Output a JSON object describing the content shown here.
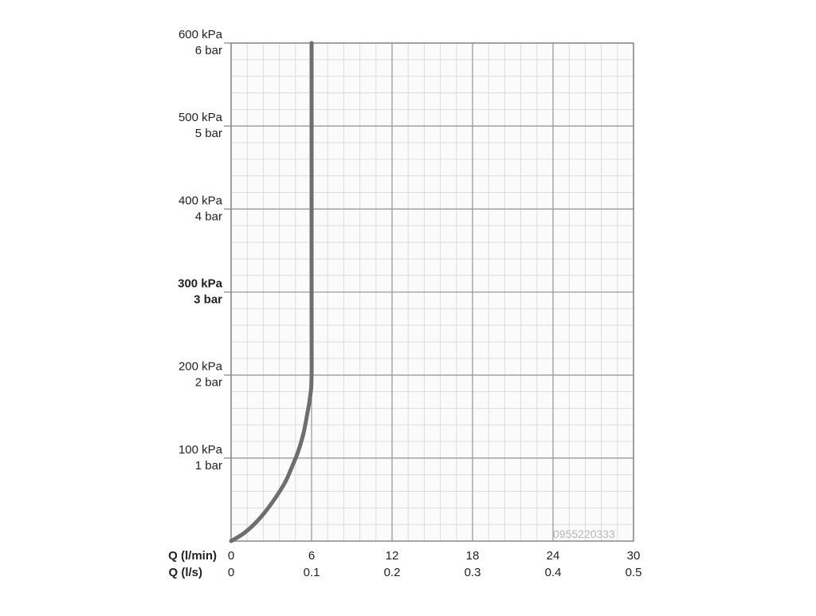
{
  "chart_data": {
    "type": "line",
    "x_axes": [
      {
        "label": "Q (l/min)",
        "ticks": [
          0,
          6,
          12,
          18,
          24,
          30
        ],
        "tick_labels": [
          "0",
          "6",
          "12",
          "18",
          "24",
          "30"
        ],
        "range": [
          0,
          30
        ]
      },
      {
        "label": "Q (l/s)",
        "ticks": [
          0,
          0.1,
          0.2,
          0.3,
          0.4,
          0.5
        ],
        "tick_labels": [
          "0",
          "0.1",
          "0.2",
          "0.3",
          "0.4",
          "0.5"
        ],
        "range": [
          0,
          0.5
        ]
      }
    ],
    "y_axis": {
      "range_kpa": [
        0,
        600
      ],
      "ticks": [
        {
          "kpa": 100,
          "kpa_label": "100 kPa",
          "bar_label": "1 bar",
          "bold": false
        },
        {
          "kpa": 200,
          "kpa_label": "200 kPa",
          "bar_label": "2 bar",
          "bold": false
        },
        {
          "kpa": 300,
          "kpa_label": "300 kPa",
          "bar_label": "3 bar",
          "bold": true
        },
        {
          "kpa": 400,
          "kpa_label": "400 kPa",
          "bar_label": "4 bar",
          "bold": false
        },
        {
          "kpa": 500,
          "kpa_label": "500 kPa",
          "bar_label": "5 bar",
          "bold": false
        },
        {
          "kpa": 600,
          "kpa_label": "600 kPa",
          "bar_label": "6 bar",
          "bold": false
        }
      ]
    },
    "grid": {
      "major": true,
      "minor": true,
      "minor_per_major": 5
    },
    "series": [
      {
        "color": "#6e6e6e",
        "x_lpm": [
          0,
          1,
          2,
          3,
          4,
          4.5,
          5,
          5.4,
          5.7,
          5.9,
          6,
          6,
          6
        ],
        "y_kpa": [
          0,
          10,
          25,
          45,
          70,
          88,
          108,
          130,
          155,
          175,
          200,
          300,
          600
        ]
      }
    ],
    "watermark": "0955220333"
  }
}
